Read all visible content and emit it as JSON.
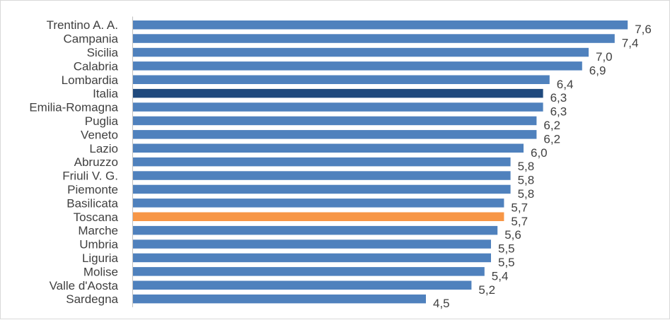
{
  "chart_data": {
    "type": "bar",
    "orientation": "horizontal",
    "title": "",
    "xlabel": "",
    "ylabel": "",
    "xlim": [
      0,
      8
    ],
    "grid": false,
    "legend": "none",
    "categories": [
      "Trentino A. A.",
      "Campania",
      "Sicilia",
      "Calabria",
      "Lombardia",
      "Italia",
      "Emilia-Romagna",
      "Puglia",
      "Veneto",
      "Lazio",
      "Abruzzo",
      "Friuli V. G.",
      "Piemonte",
      "Basilicata",
      "Toscana",
      "Marche",
      "Umbria",
      "Liguria",
      "Molise",
      "Valle d'Aosta",
      "Sardegna"
    ],
    "values": [
      7.6,
      7.4,
      7.0,
      6.9,
      6.4,
      6.3,
      6.3,
      6.2,
      6.2,
      6.0,
      5.8,
      5.8,
      5.8,
      5.7,
      5.7,
      5.6,
      5.5,
      5.5,
      5.4,
      5.2,
      4.5
    ],
    "value_labels": [
      "7,6",
      "7,4",
      "7,0",
      "6,9",
      "6,4",
      "6,3",
      "6,3",
      "6,2",
      "6,2",
      "6,0",
      "5,8",
      "5,8",
      "5,8",
      "5,7",
      "5,7",
      "5,6",
      "5,5",
      "5,5",
      "5,4",
      "5,2",
      "4,5"
    ],
    "colors": {
      "default": "#4f81bd",
      "highlight": {
        "Italia": "#1f497d",
        "Toscana": "#f79646"
      },
      "axis": "#bfbfbf",
      "text": "#404040"
    }
  }
}
